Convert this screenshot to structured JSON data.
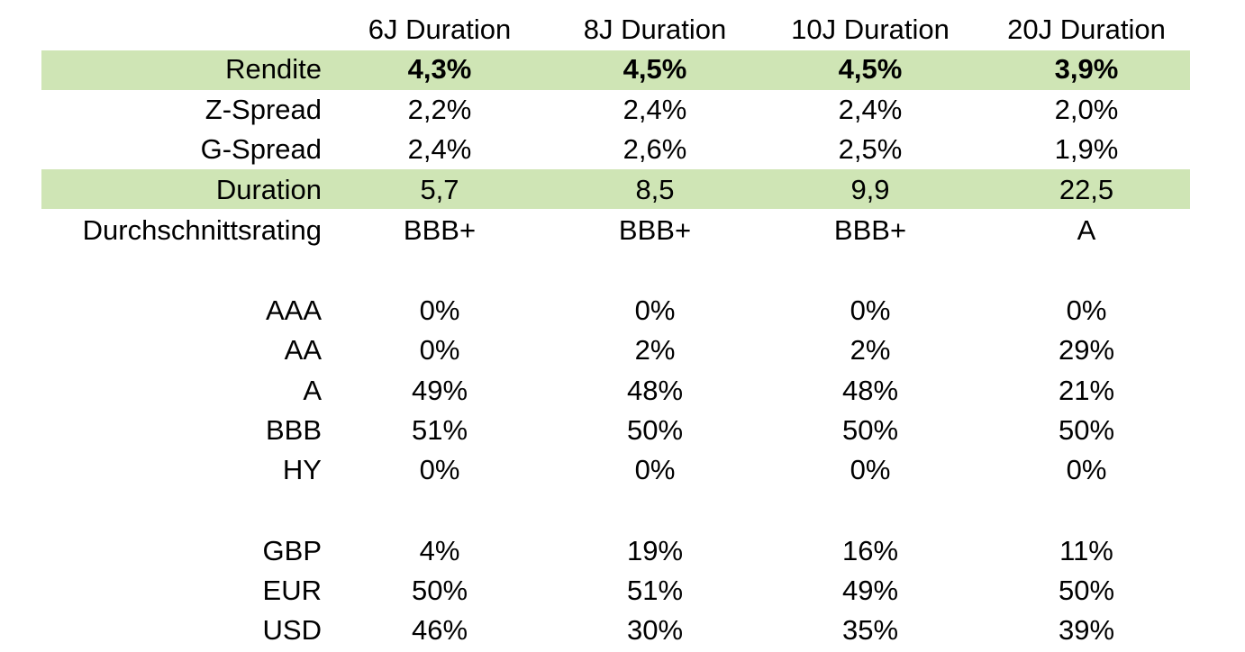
{
  "style": {
    "highlight_color": "#cfe5b5"
  },
  "columns": [
    "6J Duration",
    "8J Duration",
    "10J Duration",
    "20J Duration"
  ],
  "metrics": [
    {
      "label": "Rendite",
      "values": [
        "4,3%",
        "4,5%",
        "4,5%",
        "3,9%"
      ],
      "highlighted": true,
      "bold": true
    },
    {
      "label": "Z-Spread",
      "values": [
        "2,2%",
        "2,4%",
        "2,4%",
        "2,0%"
      ],
      "highlighted": false,
      "bold": false
    },
    {
      "label": "G-Spread",
      "values": [
        "2,4%",
        "2,6%",
        "2,5%",
        "1,9%"
      ],
      "highlighted": false,
      "bold": false
    },
    {
      "label": "Duration",
      "values": [
        "5,7",
        "8,5",
        "9,9",
        "22,5"
      ],
      "highlighted": true,
      "bold": false
    },
    {
      "label": "Durchschnittsrating",
      "values": [
        "BBB+",
        "BBB+",
        "BBB+",
        "A"
      ],
      "highlighted": false,
      "bold": false
    }
  ],
  "ratings": [
    {
      "label": "AAA",
      "values": [
        "0%",
        "0%",
        "0%",
        "0%"
      ]
    },
    {
      "label": "AA",
      "values": [
        "0%",
        "2%",
        "2%",
        "29%"
      ]
    },
    {
      "label": "A",
      "values": [
        "49%",
        "48%",
        "48%",
        "21%"
      ]
    },
    {
      "label": "BBB",
      "values": [
        "51%",
        "50%",
        "50%",
        "50%"
      ]
    },
    {
      "label": "HY",
      "values": [
        "0%",
        "0%",
        "0%",
        "0%"
      ]
    }
  ],
  "currencies": [
    {
      "label": "GBP",
      "values": [
        "4%",
        "19%",
        "16%",
        "11%"
      ]
    },
    {
      "label": "EUR",
      "values": [
        "50%",
        "51%",
        "49%",
        "50%"
      ]
    },
    {
      "label": "USD",
      "values": [
        "46%",
        "30%",
        "35%",
        "39%"
      ]
    }
  ]
}
